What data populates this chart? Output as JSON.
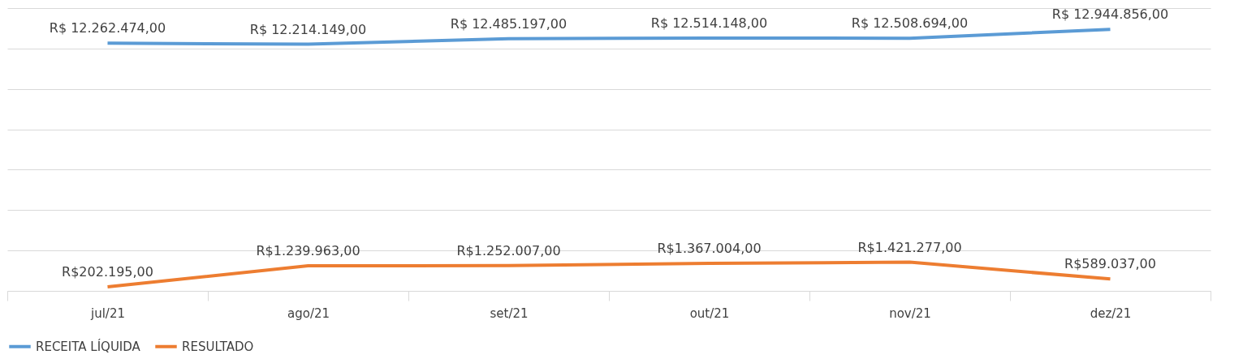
{
  "chart_data": {
    "type": "line",
    "categories": [
      "jul/21",
      "ago/21",
      "set/21",
      "out/21",
      "nov/21",
      "dez/21"
    ],
    "series": [
      {
        "name": "RECEITA LÍQUIDA",
        "color": "#5b9bd5",
        "values": [
          12262474,
          12214149,
          12485197,
          12514148,
          12508694,
          12944856
        ],
        "value_labels": [
          "R$ 12.262.474,00",
          "R$ 12.214.149,00",
          "R$ 12.485.197,00",
          "R$ 12.514.148,00",
          "R$ 12.508.694,00",
          "R$ 12.944.856,00"
        ]
      },
      {
        "name": "RESULTADO",
        "color": "#ed7d31",
        "values": [
          202195,
          1239963,
          1252007,
          1367004,
          1421277,
          589037
        ],
        "value_labels": [
          "R$202.195,00",
          "R$1.239.963,00",
          "R$1.252.007,00",
          "R$1.367.004,00",
          "R$1.421.277,00",
          "R$589.037,00"
        ]
      }
    ],
    "ylim": [
      0,
      14000000
    ],
    "yticks": [
      {
        "value": 0,
        "label": null
      },
      {
        "value": 2000000,
        "label": null
      },
      {
        "value": 4000000,
        "label": null
      },
      {
        "value": 6000000,
        "label": null
      },
      {
        "value": 8000000,
        "label": null
      },
      {
        "value": 10000000,
        "label": null
      },
      {
        "value": 12000000,
        "label": null
      },
      {
        "value": 14000000,
        "label": null
      }
    ],
    "tick_labels": "x",
    "grid": "y",
    "legend": "bottom",
    "marker": "none",
    "line_style": "solid"
  }
}
